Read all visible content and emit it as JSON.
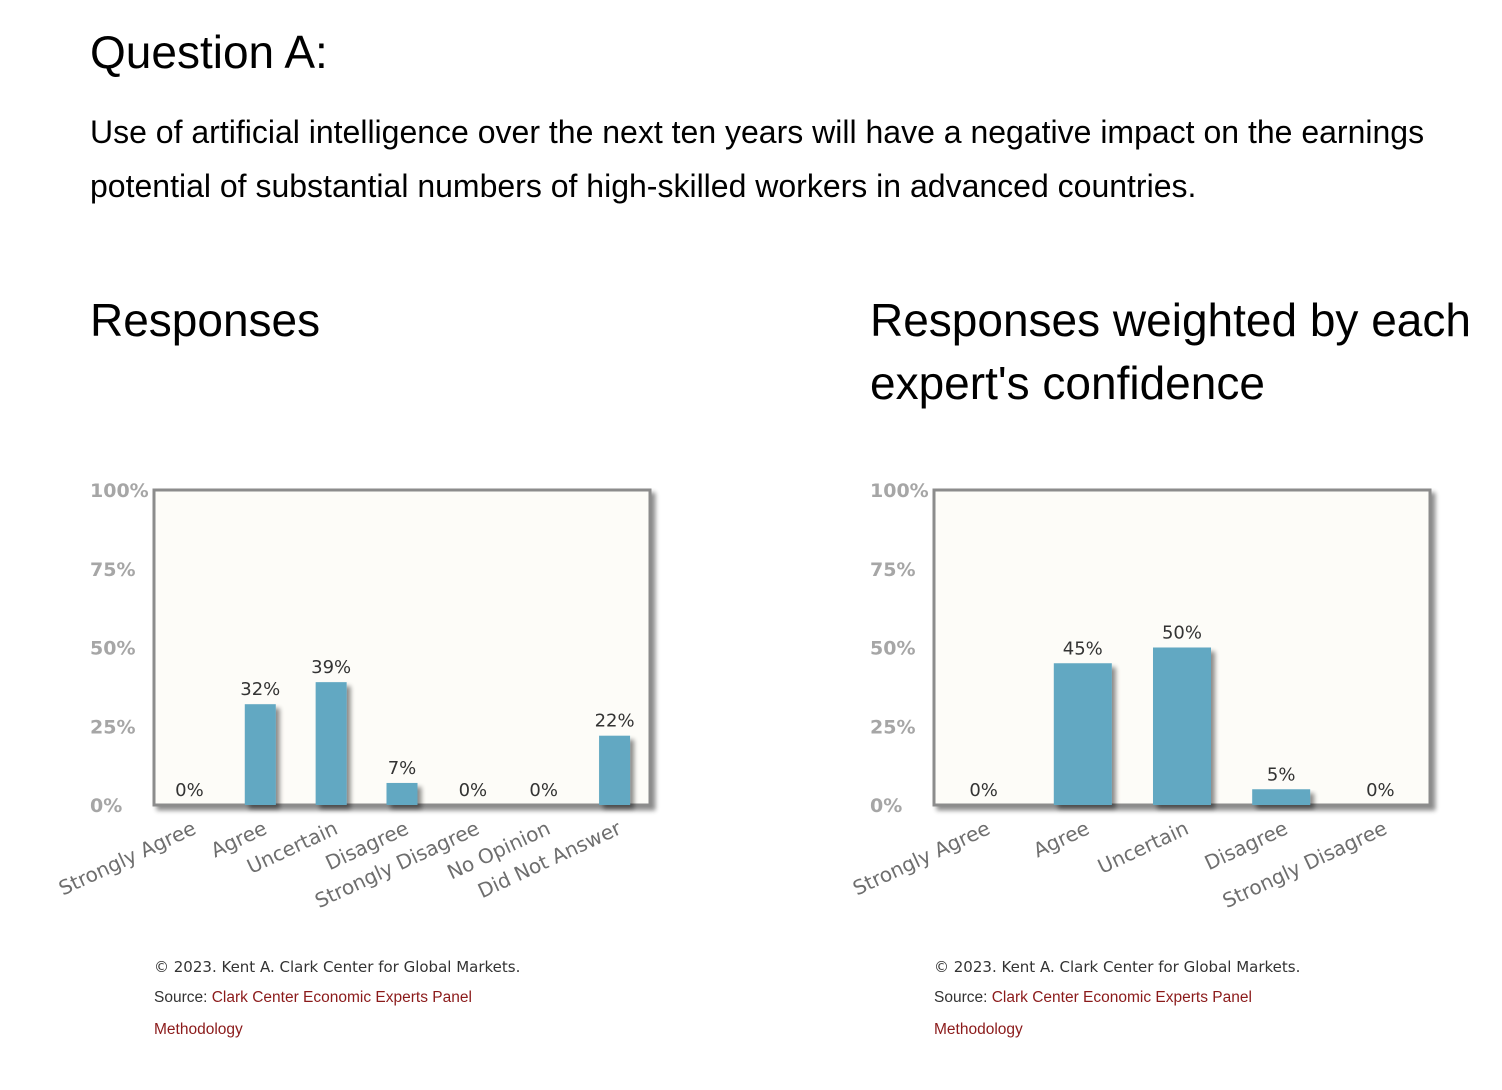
{
  "question": {
    "title": "Question A:",
    "text": "Use of artificial intelligence over the next ten years will have a negative impact on the earnings potential of substantial numbers of high-skilled workers in advanced countries."
  },
  "chart_data": [
    {
      "type": "bar",
      "title": "Responses",
      "categories": [
        "Strongly Agree",
        "Agree",
        "Uncertain",
        "Disagree",
        "Strongly Disagree",
        "No Opinion",
        "Did Not Answer"
      ],
      "values": [
        0,
        32,
        39,
        7,
        0,
        0,
        22
      ],
      "value_labels": [
        "0%",
        "32%",
        "39%",
        "7%",
        "0%",
        "0%",
        "22%"
      ],
      "yticks": [
        "0%",
        "25%",
        "50%",
        "75%",
        "100%"
      ],
      "ylim": [
        0,
        100
      ],
      "bar_color": "#62a8c2",
      "plot_background": "#fdfcf8"
    },
    {
      "type": "bar",
      "title": "Responses weighted by each expert's confidence",
      "categories": [
        "Strongly Agree",
        "Agree",
        "Uncertain",
        "Disagree",
        "Strongly Disagree"
      ],
      "values": [
        0,
        45,
        50,
        5,
        0
      ],
      "value_labels": [
        "0%",
        "45%",
        "50%",
        "5%",
        "0%"
      ],
      "yticks": [
        "0%",
        "25%",
        "50%",
        "75%",
        "100%"
      ],
      "ylim": [
        0,
        100
      ],
      "bar_color": "#62a8c2",
      "plot_background": "#fdfcf8"
    }
  ],
  "footer": {
    "copyright": "© 2023. Kent A. Clark Center for Global Markets.",
    "source_label": "Source: ",
    "source_link": "Clark Center Economic Experts Panel",
    "methodology_link": "Methodology"
  }
}
